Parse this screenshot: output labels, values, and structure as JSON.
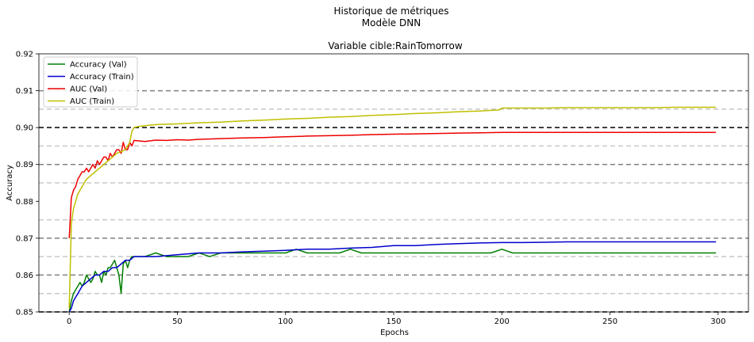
{
  "suptitle": [
    "Historique de métriques",
    "Modèle DNN"
  ],
  "chart_data": {
    "type": "line",
    "title": "Variable cible:RainTomorrow",
    "xlabel": "Epochs",
    "ylabel": "Accuracy",
    "xlim": [
      -14,
      314
    ],
    "ylim": [
      0.85,
      0.92
    ],
    "xticks": [
      0,
      50,
      100,
      150,
      200,
      250,
      300
    ],
    "yticks": [
      0.85,
      0.86,
      0.87,
      0.88,
      0.89,
      0.9,
      0.91,
      0.92
    ],
    "ytick_labels": [
      "0.85",
      "0.86",
      "0.87",
      "0.88",
      "0.89",
      "0.90",
      "0.91",
      "0.92"
    ],
    "legend_position": "upper-left",
    "reference_lines": {
      "black_dashed": [
        0.85,
        0.9
      ],
      "gray_dashed": [
        0.86,
        0.87,
        0.89,
        0.91
      ],
      "lightgray_dashed": [
        0.855,
        0.865,
        0.875,
        0.885,
        0.895,
        0.905
      ]
    },
    "series": [
      {
        "name": "Accuracy (Val)",
        "color": "#008000",
        "x": [
          0,
          1,
          2,
          3,
          4,
          5,
          6,
          7,
          8,
          9,
          10,
          11,
          12,
          13,
          14,
          15,
          16,
          17,
          18,
          19,
          20,
          21,
          22,
          23,
          24,
          25,
          26,
          27,
          28,
          29,
          30,
          32,
          35,
          40,
          45,
          50,
          55,
          60,
          65,
          70,
          75,
          80,
          85,
          90,
          95,
          100,
          105,
          110,
          115,
          120,
          125,
          130,
          135,
          140,
          145,
          150,
          155,
          160,
          165,
          170,
          175,
          180,
          185,
          190,
          195,
          200,
          205,
          210,
          215,
          220,
          225,
          230,
          235,
          240,
          245,
          250,
          255,
          260,
          265,
          270,
          275,
          280,
          285,
          290,
          295,
          299
        ],
        "y": [
          0.85,
          0.853,
          0.855,
          0.856,
          0.857,
          0.858,
          0.857,
          0.858,
          0.86,
          0.859,
          0.858,
          0.859,
          0.861,
          0.86,
          0.86,
          0.858,
          0.861,
          0.86,
          0.862,
          0.862,
          0.863,
          0.864,
          0.862,
          0.86,
          0.855,
          0.863,
          0.864,
          0.862,
          0.864,
          0.865,
          0.865,
          0.865,
          0.865,
          0.866,
          0.865,
          0.865,
          0.865,
          0.866,
          0.865,
          0.866,
          0.866,
          0.866,
          0.866,
          0.866,
          0.866,
          0.866,
          0.867,
          0.866,
          0.866,
          0.866,
          0.866,
          0.867,
          0.866,
          0.866,
          0.866,
          0.866,
          0.866,
          0.866,
          0.866,
          0.866,
          0.866,
          0.866,
          0.866,
          0.866,
          0.866,
          0.867,
          0.866,
          0.866,
          0.866,
          0.866,
          0.866,
          0.866,
          0.866,
          0.866,
          0.866,
          0.866,
          0.866,
          0.866,
          0.866,
          0.866,
          0.866,
          0.866,
          0.866,
          0.866,
          0.866,
          0.866
        ]
      },
      {
        "name": "Accuracy (Train)",
        "color": "#0000cc",
        "x": [
          0,
          1,
          2,
          3,
          4,
          5,
          6,
          8,
          10,
          12,
          14,
          16,
          18,
          20,
          22,
          24,
          26,
          28,
          30,
          35,
          40,
          50,
          60,
          70,
          80,
          90,
          100,
          110,
          120,
          130,
          140,
          150,
          160,
          170,
          180,
          190,
          200,
          210,
          220,
          230,
          240,
          250,
          260,
          270,
          280,
          290,
          299
        ],
        "y": [
          0.85,
          0.851,
          0.853,
          0.854,
          0.855,
          0.856,
          0.857,
          0.858,
          0.859,
          0.86,
          0.86,
          0.861,
          0.861,
          0.862,
          0.862,
          0.863,
          0.864,
          0.864,
          0.865,
          0.865,
          0.865,
          0.8655,
          0.866,
          0.866,
          0.8663,
          0.8665,
          0.8667,
          0.867,
          0.867,
          0.8673,
          0.8675,
          0.868,
          0.868,
          0.8683,
          0.8685,
          0.8687,
          0.8688,
          0.8688,
          0.8689,
          0.869,
          0.869,
          0.869,
          0.869,
          0.869,
          0.869,
          0.869,
          0.869
        ]
      },
      {
        "name": "AUC (Val)",
        "color": "#ee0000",
        "x": [
          0,
          1,
          2,
          3,
          4,
          5,
          6,
          7,
          8,
          9,
          10,
          11,
          12,
          13,
          14,
          15,
          16,
          17,
          18,
          19,
          20,
          21,
          22,
          23,
          24,
          25,
          26,
          27,
          28,
          29,
          30,
          35,
          40,
          45,
          50,
          55,
          60,
          70,
          80,
          90,
          100,
          110,
          120,
          130,
          140,
          150,
          160,
          170,
          180,
          190,
          200,
          220,
          240,
          260,
          280,
          299
        ],
        "y": [
          0.87,
          0.881,
          0.883,
          0.884,
          0.886,
          0.887,
          0.888,
          0.888,
          0.889,
          0.888,
          0.889,
          0.89,
          0.889,
          0.891,
          0.89,
          0.891,
          0.892,
          0.892,
          0.891,
          0.893,
          0.892,
          0.893,
          0.894,
          0.894,
          0.893,
          0.896,
          0.894,
          0.894,
          0.896,
          0.895,
          0.8965,
          0.8962,
          0.8966,
          0.8965,
          0.8967,
          0.8966,
          0.8968,
          0.897,
          0.8972,
          0.8973,
          0.8975,
          0.8977,
          0.8978,
          0.8979,
          0.8981,
          0.8982,
          0.8983,
          0.8984,
          0.8985,
          0.8986,
          0.8987,
          0.8987,
          0.8987,
          0.8987,
          0.8987,
          0.8987
        ]
      },
      {
        "name": "AUC (Train)",
        "color": "#bfbf00",
        "x": [
          0,
          1,
          2,
          3,
          4,
          5,
          6,
          7,
          8,
          10,
          12,
          14,
          16,
          18,
          20,
          22,
          24,
          26,
          28,
          29,
          30,
          32,
          35,
          40,
          50,
          60,
          70,
          80,
          90,
          100,
          110,
          120,
          130,
          140,
          150,
          160,
          170,
          180,
          190,
          199,
          200,
          210,
          220,
          230,
          240,
          250,
          260,
          270,
          280,
          290,
          299
        ],
        "y": [
          0.851,
          0.874,
          0.878,
          0.88,
          0.882,
          0.883,
          0.884,
          0.885,
          0.886,
          0.887,
          0.888,
          0.889,
          0.89,
          0.891,
          0.892,
          0.893,
          0.8935,
          0.894,
          0.896,
          0.899,
          0.9,
          0.9003,
          0.9005,
          0.9008,
          0.901,
          0.9013,
          0.9015,
          0.9018,
          0.902,
          0.9023,
          0.9025,
          0.9028,
          0.903,
          0.9033,
          0.9035,
          0.9038,
          0.904,
          0.9043,
          0.9045,
          0.9048,
          0.9053,
          0.9053,
          0.9053,
          0.9054,
          0.9054,
          0.9054,
          0.9054,
          0.9054,
          0.9055,
          0.9055,
          0.9055
        ]
      }
    ]
  }
}
